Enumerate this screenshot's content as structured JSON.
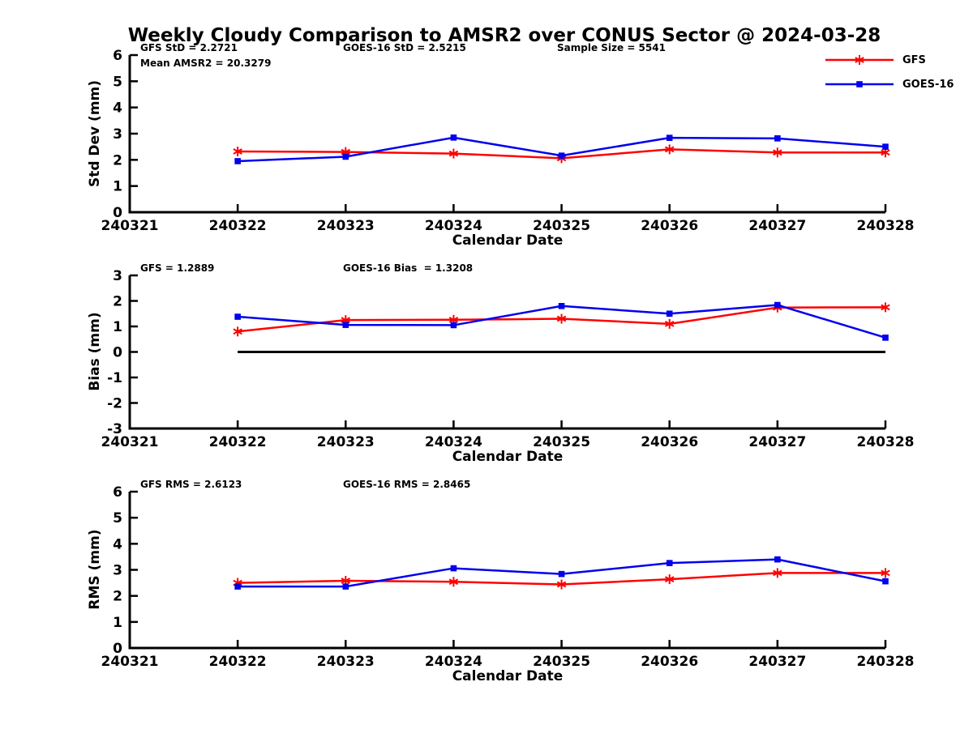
{
  "title": "Weekly Cloudy Comparison to AMSR2 over CONUS Sector @ 2024-03-28",
  "legend": [
    {
      "label": "GFS",
      "color": "#ff0000",
      "marker": "asterisk"
    },
    {
      "label": "GOES-16",
      "color": "#0000ee",
      "marker": "square"
    }
  ],
  "chart_data": [
    {
      "type": "line",
      "ylabel": "Std Dev (mm)",
      "xlabel": "Calendar Date",
      "ylim": [
        0,
        6
      ],
      "yticks": [
        0,
        1,
        2,
        3,
        4,
        5,
        6
      ],
      "xticklabels": [
        "240321",
        "240322",
        "240323",
        "240324",
        "240325",
        "240326",
        "240327",
        "240328"
      ],
      "x": [
        "240322",
        "240323",
        "240324",
        "240325",
        "240326",
        "240327",
        "240328"
      ],
      "series": [
        {
          "name": "GFS",
          "color": "#ff0000",
          "marker": "asterisk",
          "values": [
            2.32,
            2.3,
            2.24,
            2.06,
            2.4,
            2.28,
            2.28
          ]
        },
        {
          "name": "GOES-16",
          "color": "#0000ee",
          "marker": "square",
          "values": [
            1.95,
            2.12,
            2.85,
            2.16,
            2.84,
            2.82,
            2.5
          ]
        }
      ],
      "annotations": [
        {
          "text": "GFS StD = 2.2721",
          "col": 0,
          "row": 0
        },
        {
          "text": "Mean AMSR2 = 20.3279",
          "col": 0,
          "row": 1
        },
        {
          "text": "GOES-16 StD = 2.5215",
          "col": 1,
          "row": 0
        },
        {
          "text": "Sample Size = 5541",
          "col": 2,
          "row": 0
        }
      ]
    },
    {
      "type": "line",
      "ylabel": "Bias (mm)",
      "xlabel": "Calendar Date",
      "ylim": [
        -3,
        3
      ],
      "yticks": [
        -3,
        -2,
        -1,
        0,
        1,
        2,
        3
      ],
      "xticklabels": [
        "240321",
        "240322",
        "240323",
        "240324",
        "240325",
        "240326",
        "240327",
        "240328"
      ],
      "x": [
        "240322",
        "240323",
        "240324",
        "240325",
        "240326",
        "240327",
        "240328"
      ],
      "zero_line": {
        "value": 0,
        "from": "240322",
        "to": "240328",
        "color": "#000000"
      },
      "series": [
        {
          "name": "GFS",
          "color": "#ff0000",
          "marker": "asterisk",
          "values": [
            0.8,
            1.25,
            1.26,
            1.3,
            1.1,
            1.74,
            1.75
          ]
        },
        {
          "name": "GOES-16",
          "color": "#0000ee",
          "marker": "square",
          "values": [
            1.38,
            1.06,
            1.05,
            1.8,
            1.5,
            1.84,
            0.56
          ]
        }
      ],
      "annotations": [
        {
          "text": "GFS = 1.2889",
          "col": 0,
          "row": 0
        },
        {
          "text": "GOES-16 Bias  = 1.3208",
          "col": 1,
          "row": 0
        }
      ]
    },
    {
      "type": "line",
      "ylabel": "RMS (mm)",
      "xlabel": "Calendar Date",
      "ylim": [
        0,
        6
      ],
      "yticks": [
        0,
        1,
        2,
        3,
        4,
        5,
        6
      ],
      "xticklabels": [
        "240321",
        "240322",
        "240323",
        "240324",
        "240325",
        "240326",
        "240327",
        "240328"
      ],
      "x": [
        "240322",
        "240323",
        "240324",
        "240325",
        "240326",
        "240327",
        "240328"
      ],
      "series": [
        {
          "name": "GFS",
          "color": "#ff0000",
          "marker": "asterisk",
          "values": [
            2.5,
            2.58,
            2.54,
            2.44,
            2.64,
            2.88,
            2.88
          ]
        },
        {
          "name": "GOES-16",
          "color": "#0000ee",
          "marker": "square",
          "values": [
            2.36,
            2.36,
            3.06,
            2.84,
            3.26,
            3.4,
            2.56
          ]
        }
      ],
      "annotations": [
        {
          "text": "GFS RMS = 2.6123",
          "col": 0,
          "row": 0
        },
        {
          "text": "GOES-16 RMS = 2.8465",
          "col": 1,
          "row": 0
        }
      ]
    }
  ]
}
